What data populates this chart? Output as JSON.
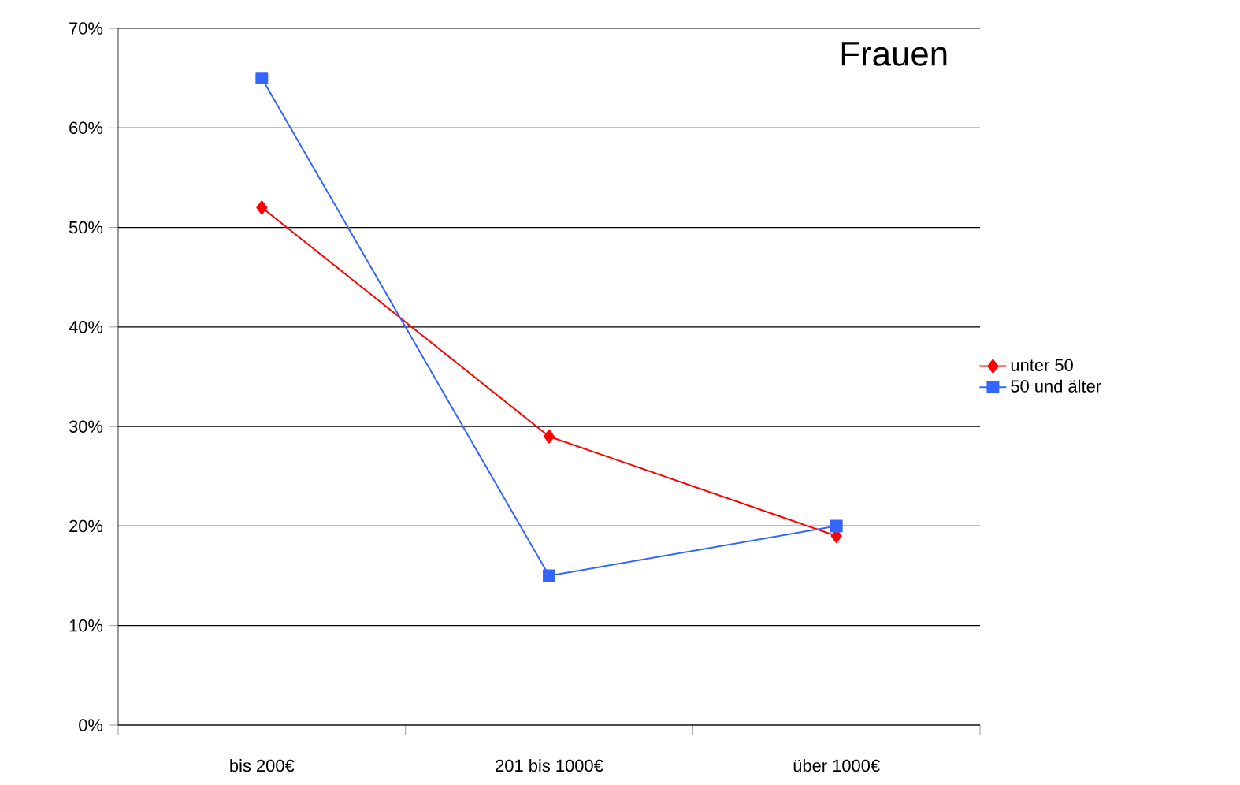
{
  "chart_data": {
    "type": "line",
    "title": "Frauen",
    "categories": [
      "bis 200€",
      "201 bis 1000€",
      "über 1000€"
    ],
    "series": [
      {
        "name": "unter 50",
        "color": "#ff0000",
        "marker": "diamond",
        "values": [
          52,
          29,
          19
        ]
      },
      {
        "name": "50 und älter",
        "color": "#3366ff",
        "marker": "square",
        "values": [
          65,
          15,
          20
        ]
      }
    ],
    "ylim": [
      0,
      70
    ],
    "yticks": [
      {
        "value": 0,
        "label": "0%"
      },
      {
        "value": 10,
        "label": "10%"
      },
      {
        "value": 20,
        "label": "20%"
      },
      {
        "value": 30,
        "label": "30%"
      },
      {
        "value": 40,
        "label": "40%"
      },
      {
        "value": 50,
        "label": "50%"
      },
      {
        "value": 60,
        "label": "60%"
      },
      {
        "value": 70,
        "label": "70%"
      }
    ],
    "grid": "y",
    "legend": "right"
  }
}
